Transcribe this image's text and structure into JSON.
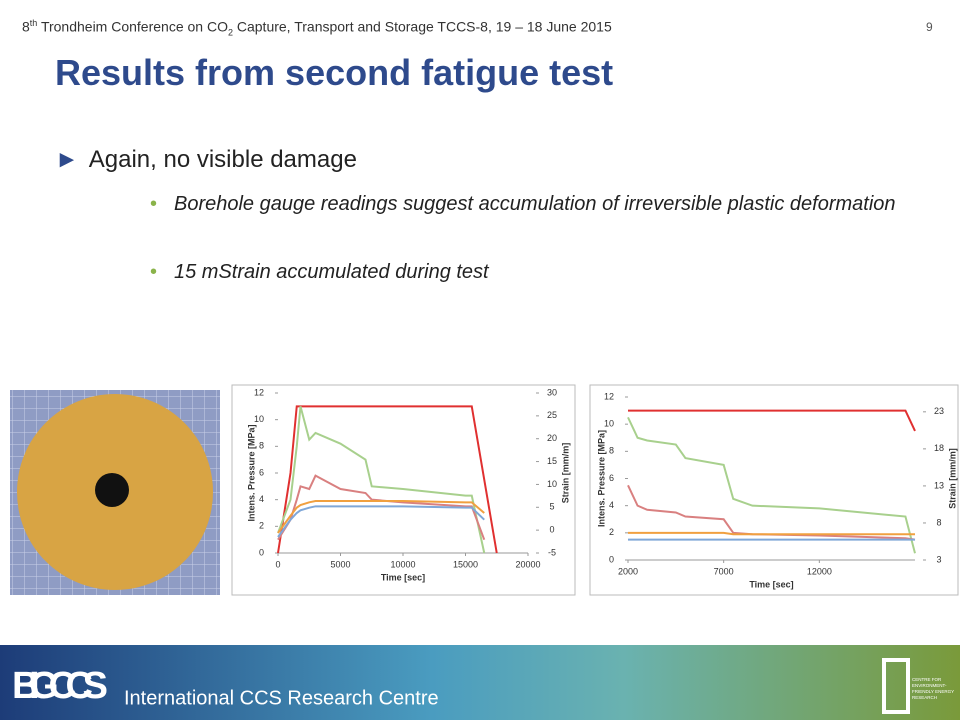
{
  "header": {
    "parts": [
      "8",
      "th",
      " Trondheim Conference on CO",
      "2",
      " Capture, Transport and Storage TCCS-8, 19 – 18 June 2015"
    ],
    "page_number": "9"
  },
  "title": "Results from second fatigue test",
  "bullets": [
    {
      "text": "Again, no visible damage",
      "sub": [
        "Borehole gauge readings suggest accumulation of irreversible plastic deformation",
        "15 mStrain accumulated during test"
      ]
    }
  ],
  "chart_data": [
    {
      "type": "line",
      "xlabel": "Time [sec]",
      "ylabel": "Intens. Pressure [MPa]",
      "y2label": "Strain [mm/m]",
      "x": [
        0,
        1000,
        1500,
        1800,
        2500,
        3000,
        5000,
        7000,
        7500,
        10000,
        15000,
        15500,
        16500,
        17500
      ],
      "series": [
        {
          "color": "#e03030",
          "values": [
            0,
            6,
            11,
            11,
            11,
            11,
            11,
            11,
            11,
            11,
            11,
            11,
            5.5,
            0
          ]
        },
        {
          "color": "#a8d08d",
          "values": [
            1.5,
            4,
            8,
            11,
            8.5,
            9,
            8.2,
            7,
            5,
            4.8,
            4.3,
            4.3,
            0,
            null
          ]
        },
        {
          "color": "#d98080",
          "values": [
            1,
            2.5,
            4,
            5,
            4.8,
            5.8,
            4.8,
            4.5,
            4,
            3.8,
            3.5,
            3.5,
            1,
            null
          ]
        },
        {
          "color": "#f0a040",
          "values": [
            1.5,
            2.8,
            3.4,
            3.6,
            3.8,
            3.9,
            3.9,
            3.9,
            3.9,
            3.9,
            3.8,
            3.8,
            3,
            null
          ]
        },
        {
          "color": "#7fa7d8",
          "values": [
            1.2,
            2.5,
            3,
            3.2,
            3.4,
            3.5,
            3.5,
            3.5,
            3.5,
            3.5,
            3.4,
            3.4,
            2.5,
            null
          ]
        }
      ],
      "xlim": [
        0,
        20000
      ],
      "xticks": [
        0,
        5000,
        10000,
        15000,
        20000
      ],
      "ylim": [
        0,
        12
      ],
      "yticks": [
        0,
        2,
        4,
        6,
        8,
        10,
        12
      ],
      "y2lim": [
        -5,
        30
      ],
      "y2ticks": [
        -5,
        0,
        5,
        10,
        15,
        20,
        25,
        30
      ]
    },
    {
      "type": "line",
      "xlabel": "Time [sec]",
      "ylabel": "Intens. Pressure [MPa]",
      "y2label": "Strain [mm/m]",
      "x": [
        2000,
        2500,
        3000,
        4500,
        5000,
        7000,
        7500,
        8500,
        12000,
        16500,
        17000
      ],
      "series": [
        {
          "color": "#e03030",
          "values": [
            11,
            11,
            11,
            11,
            11,
            11,
            11,
            11,
            11,
            11,
            9.5
          ]
        },
        {
          "color": "#a8d08d",
          "values": [
            10.5,
            9,
            8.8,
            8.5,
            7.5,
            7,
            4.5,
            4,
            3.8,
            3.2,
            0.5
          ]
        },
        {
          "color": "#d98080",
          "values": [
            5.5,
            4,
            3.7,
            3.5,
            3.2,
            3,
            2,
            1.9,
            1.8,
            1.6,
            1.5
          ]
        },
        {
          "color": "#f0a040",
          "values": [
            2,
            2,
            2,
            2,
            2,
            2,
            1.9,
            1.9,
            1.9,
            1.9,
            1.9
          ]
        },
        {
          "color": "#7fa7d8",
          "values": [
            1.5,
            1.5,
            1.5,
            1.5,
            1.5,
            1.5,
            1.5,
            1.5,
            1.5,
            1.5,
            1.5
          ]
        }
      ],
      "xlim": [
        2000,
        17000
      ],
      "xticks": [
        2000,
        7000,
        12000
      ],
      "ylim": [
        0,
        12
      ],
      "yticks": [
        0,
        2,
        4,
        6,
        8,
        10,
        12
      ],
      "y2lim": [
        3,
        25
      ],
      "y2ticks": [
        3,
        8,
        13,
        18,
        23
      ]
    }
  ],
  "footer": {
    "logo": "BIGCCS",
    "tagline": "International CCS Research Centre",
    "partner_text": [
      "CENTRE FOR",
      "ENVIRONMENT-",
      "FRIENDLY ENERGY",
      "RESEARCH"
    ]
  }
}
